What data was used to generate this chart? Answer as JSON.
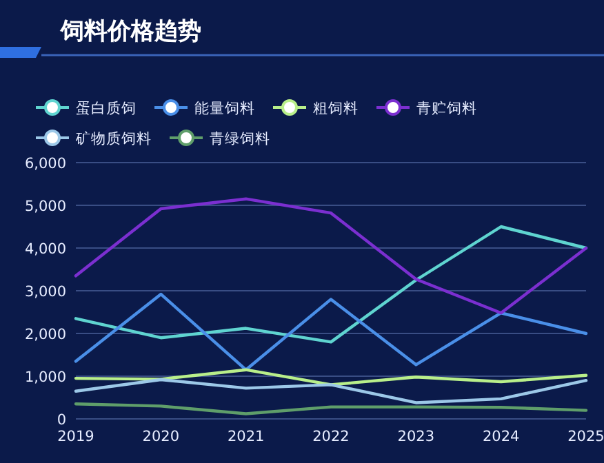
{
  "chart_data": {
    "type": "line",
    "title": "饲料价格趋势",
    "categories": [
      "2019",
      "2020",
      "2021",
      "2022",
      "2023",
      "2024",
      "2025"
    ],
    "series": [
      {
        "name": "蛋白质饲",
        "color": "#5fd4d0",
        "values": [
          2350,
          1900,
          2120,
          1800,
          3250,
          4500,
          4000
        ]
      },
      {
        "name": "能量饲料",
        "color": "#4a8fe8",
        "values": [
          1350,
          2920,
          1150,
          2800,
          1270,
          2480,
          2000
        ]
      },
      {
        "name": "粗饲料",
        "color": "#b9ef8a",
        "values": [
          950,
          930,
          1150,
          800,
          980,
          870,
          1020
        ]
      },
      {
        "name": "青贮饲料",
        "color": "#7b2fd0",
        "values": [
          3350,
          4920,
          5150,
          4820,
          3270,
          2480,
          4000
        ]
      },
      {
        "name": "矿物质饲料",
        "color": "#9cc8e8",
        "values": [
          650,
          920,
          720,
          800,
          380,
          470,
          900
        ]
      },
      {
        "name": "青绿饲料",
        "color": "#5f9e6a",
        "values": [
          350,
          300,
          120,
          280,
          280,
          270,
          200
        ]
      }
    ],
    "ylim": [
      0,
      6000
    ],
    "yticks": [
      {
        "value": 0,
        "label": "0"
      },
      {
        "value": 1000,
        "label": "1,000"
      },
      {
        "value": 2000,
        "label": "2,000"
      },
      {
        "value": 3000,
        "label": "3,000"
      },
      {
        "value": 4000,
        "label": "4,000"
      },
      {
        "value": 5000,
        "label": "5,000"
      },
      {
        "value": 6000,
        "label": "6,000"
      }
    ],
    "grid": "y",
    "legend": "top left",
    "marker": "none",
    "line_style": "solid"
  }
}
